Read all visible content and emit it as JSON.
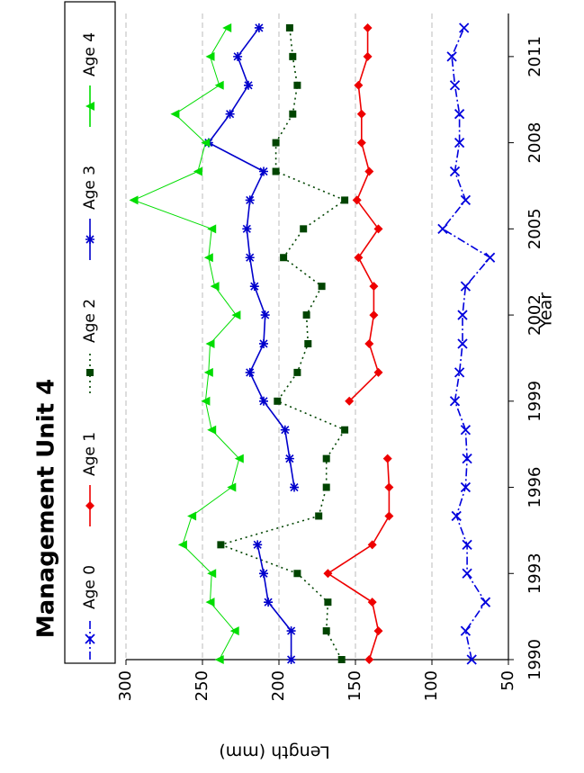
{
  "chart_data": {
    "type": "line",
    "title": "Management Unit 4",
    "x_label": "Year",
    "y_label": "Length (mm)",
    "x": [
      1990,
      1991,
      1992,
      1993,
      1994,
      1995,
      1996,
      1997,
      1998,
      1999,
      2000,
      2001,
      2002,
      2003,
      2004,
      2005,
      2006,
      2007,
      2008,
      2009,
      2010,
      2011,
      2012
    ],
    "xlim": [
      1990,
      2012.5
    ],
    "xticks": [
      1990,
      1993,
      1996,
      1999,
      2002,
      2005,
      2008,
      2011
    ],
    "ylim": [
      50,
      300
    ],
    "yticks": [
      50,
      100,
      150,
      200,
      250,
      300
    ],
    "grid": true,
    "rotated": true,
    "series": [
      {
        "name": "Age 0",
        "color": "#0000dd",
        "marker": "x",
        "dash": "dashdot",
        "values": [
          74,
          78,
          65,
          77,
          77,
          84,
          78,
          77,
          78,
          85,
          82,
          80,
          80,
          78,
          62,
          93,
          78,
          85,
          82,
          82,
          85,
          87,
          79
        ]
      },
      {
        "name": "Age 1",
        "color": "#ee0000",
        "marker": "diamond",
        "dash": "solid",
        "values": [
          141,
          135,
          139,
          168,
          139,
          128,
          128,
          129,
          null,
          154,
          135,
          141,
          138,
          138,
          148,
          135,
          149,
          141,
          146,
          146,
          148,
          142,
          142
        ]
      },
      {
        "name": "Age 2",
        "color": "#004400",
        "marker": "square",
        "dash": "dotted",
        "values": [
          159,
          169,
          168,
          188,
          238,
          174,
          169,
          169,
          157,
          201,
          188,
          181,
          182,
          172,
          197,
          184,
          157,
          202,
          202,
          191,
          188,
          191,
          193
        ]
      },
      {
        "name": "Age 3",
        "color": "#0000cc",
        "marker": "star",
        "dash": "solid",
        "values": [
          192,
          192,
          207,
          210,
          214,
          null,
          190,
          193,
          196,
          210,
          219,
          210,
          209,
          216,
          219,
          221,
          219,
          210,
          246,
          232,
          220,
          227,
          213
        ]
      },
      {
        "name": "Age 4",
        "color": "#00dd00",
        "marker": "triangle",
        "dash": "solid",
        "values": [
          239,
          229,
          245,
          244,
          263,
          257,
          231,
          226,
          244,
          248,
          246,
          245,
          228,
          242,
          246,
          244,
          295,
          253,
          248,
          268,
          239,
          245,
          234
        ]
      }
    ]
  }
}
